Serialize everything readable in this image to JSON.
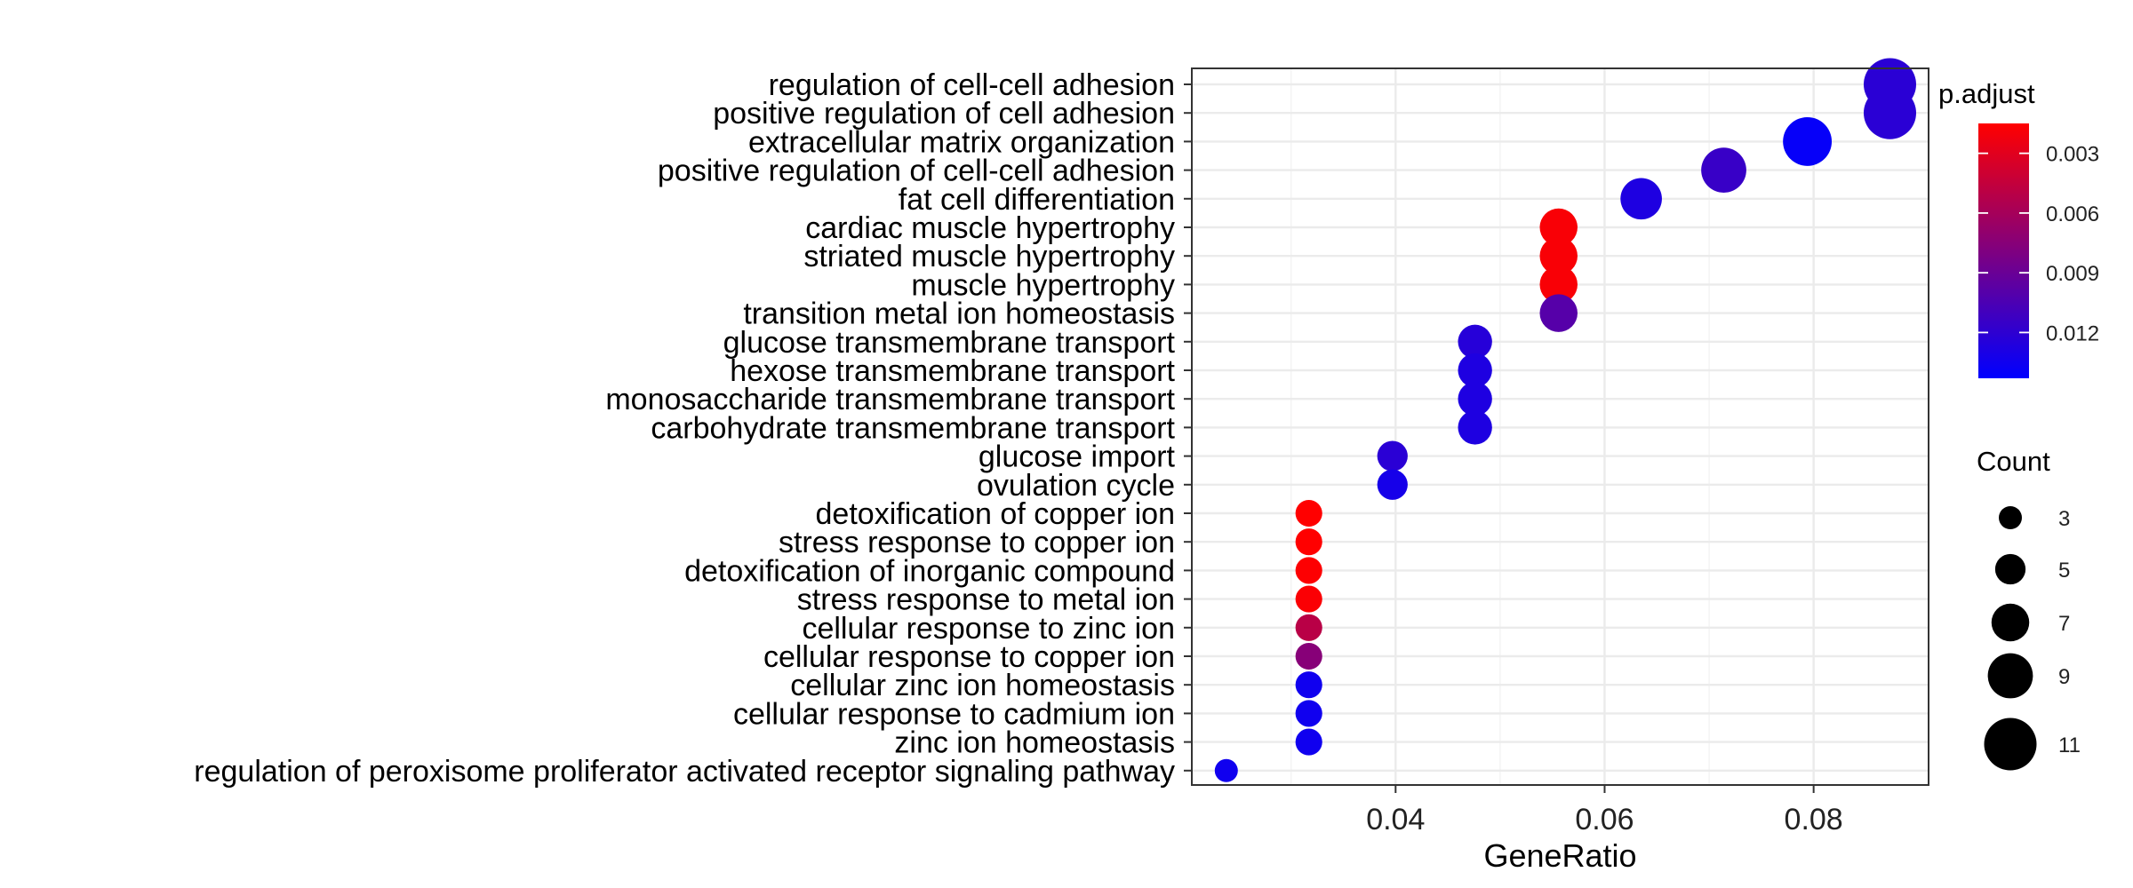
{
  "chart_data": {
    "type": "scatter",
    "xlabel": "GeneRatio",
    "ylabel": "",
    "title": "",
    "xlim": [
      0.0205,
      0.091
    ],
    "xticks": [
      0.04,
      0.06,
      0.08
    ],
    "xtick_labels": [
      "0.04",
      "0.06",
      "0.08"
    ],
    "grid": true,
    "legend_position": "right",
    "color_legend": {
      "title": "p.adjust",
      "range": [
        0.0015,
        0.0143
      ],
      "low_color": "#ff0000",
      "high_color": "#0000ff",
      "ticks": [
        0.003,
        0.006,
        0.009,
        0.012
      ],
      "tick_labels": [
        "0.003",
        "0.006",
        "0.009",
        "0.012"
      ]
    },
    "size_legend": {
      "title": "Count",
      "values": [
        3,
        5,
        7,
        9,
        11
      ],
      "labels": [
        "3",
        "5",
        "7",
        "9",
        "11"
      ],
      "color": "#000000"
    },
    "points": [
      {
        "term": "regulation of cell-cell adhesion",
        "gene_ratio": 0.0873,
        "count": 11,
        "p_adjust": 0.0122
      },
      {
        "term": "positive regulation of cell adhesion",
        "gene_ratio": 0.0873,
        "count": 11,
        "p_adjust": 0.0122
      },
      {
        "term": "extracellular matrix organization",
        "gene_ratio": 0.0794,
        "count": 10,
        "p_adjust": 0.014
      },
      {
        "term": "positive regulation of cell-cell adhesion",
        "gene_ratio": 0.0714,
        "count": 9,
        "p_adjust": 0.0115
      },
      {
        "term": "fat cell differentiation",
        "gene_ratio": 0.0635,
        "count": 8,
        "p_adjust": 0.0128
      },
      {
        "term": "cardiac muscle hypertrophy",
        "gene_ratio": 0.0556,
        "count": 7,
        "p_adjust": 0.0018
      },
      {
        "term": "striated muscle hypertrophy",
        "gene_ratio": 0.0556,
        "count": 7,
        "p_adjust": 0.0018
      },
      {
        "term": "muscle hypertrophy",
        "gene_ratio": 0.0556,
        "count": 7,
        "p_adjust": 0.0018
      },
      {
        "term": "transition metal ion homeostasis",
        "gene_ratio": 0.0556,
        "count": 7,
        "p_adjust": 0.01
      },
      {
        "term": "glucose transmembrane transport",
        "gene_ratio": 0.0476,
        "count": 6,
        "p_adjust": 0.0124
      },
      {
        "term": "hexose transmembrane transport",
        "gene_ratio": 0.0476,
        "count": 6,
        "p_adjust": 0.0128
      },
      {
        "term": "monosaccharide transmembrane transport",
        "gene_ratio": 0.0476,
        "count": 6,
        "p_adjust": 0.0128
      },
      {
        "term": "carbohydrate transmembrane transport",
        "gene_ratio": 0.0476,
        "count": 6,
        "p_adjust": 0.0128
      },
      {
        "term": "glucose import",
        "gene_ratio": 0.0397,
        "count": 5,
        "p_adjust": 0.0122
      },
      {
        "term": "ovulation cycle",
        "gene_ratio": 0.0397,
        "count": 5,
        "p_adjust": 0.0132
      },
      {
        "term": "detoxification of copper ion",
        "gene_ratio": 0.0317,
        "count": 4,
        "p_adjust": 0.0015
      },
      {
        "term": "stress response to copper ion",
        "gene_ratio": 0.0317,
        "count": 4,
        "p_adjust": 0.0015
      },
      {
        "term": "detoxification of inorganic compound",
        "gene_ratio": 0.0317,
        "count": 4,
        "p_adjust": 0.0016
      },
      {
        "term": "stress response to metal ion",
        "gene_ratio": 0.0317,
        "count": 4,
        "p_adjust": 0.0017
      },
      {
        "term": "cellular response to zinc ion",
        "gene_ratio": 0.0317,
        "count": 4,
        "p_adjust": 0.005
      },
      {
        "term": "cellular response to copper ion",
        "gene_ratio": 0.0317,
        "count": 4,
        "p_adjust": 0.0075
      },
      {
        "term": "cellular zinc ion homeostasis",
        "gene_ratio": 0.0317,
        "count": 4,
        "p_adjust": 0.0135
      },
      {
        "term": "cellular response to cadmium ion",
        "gene_ratio": 0.0317,
        "count": 4,
        "p_adjust": 0.0135
      },
      {
        "term": "zinc ion homeostasis",
        "gene_ratio": 0.0317,
        "count": 4,
        "p_adjust": 0.0135
      },
      {
        "term": "regulation of peroxisome proliferator activated receptor signaling pathway",
        "gene_ratio": 0.0238,
        "count": 3,
        "p_adjust": 0.0135
      }
    ]
  }
}
